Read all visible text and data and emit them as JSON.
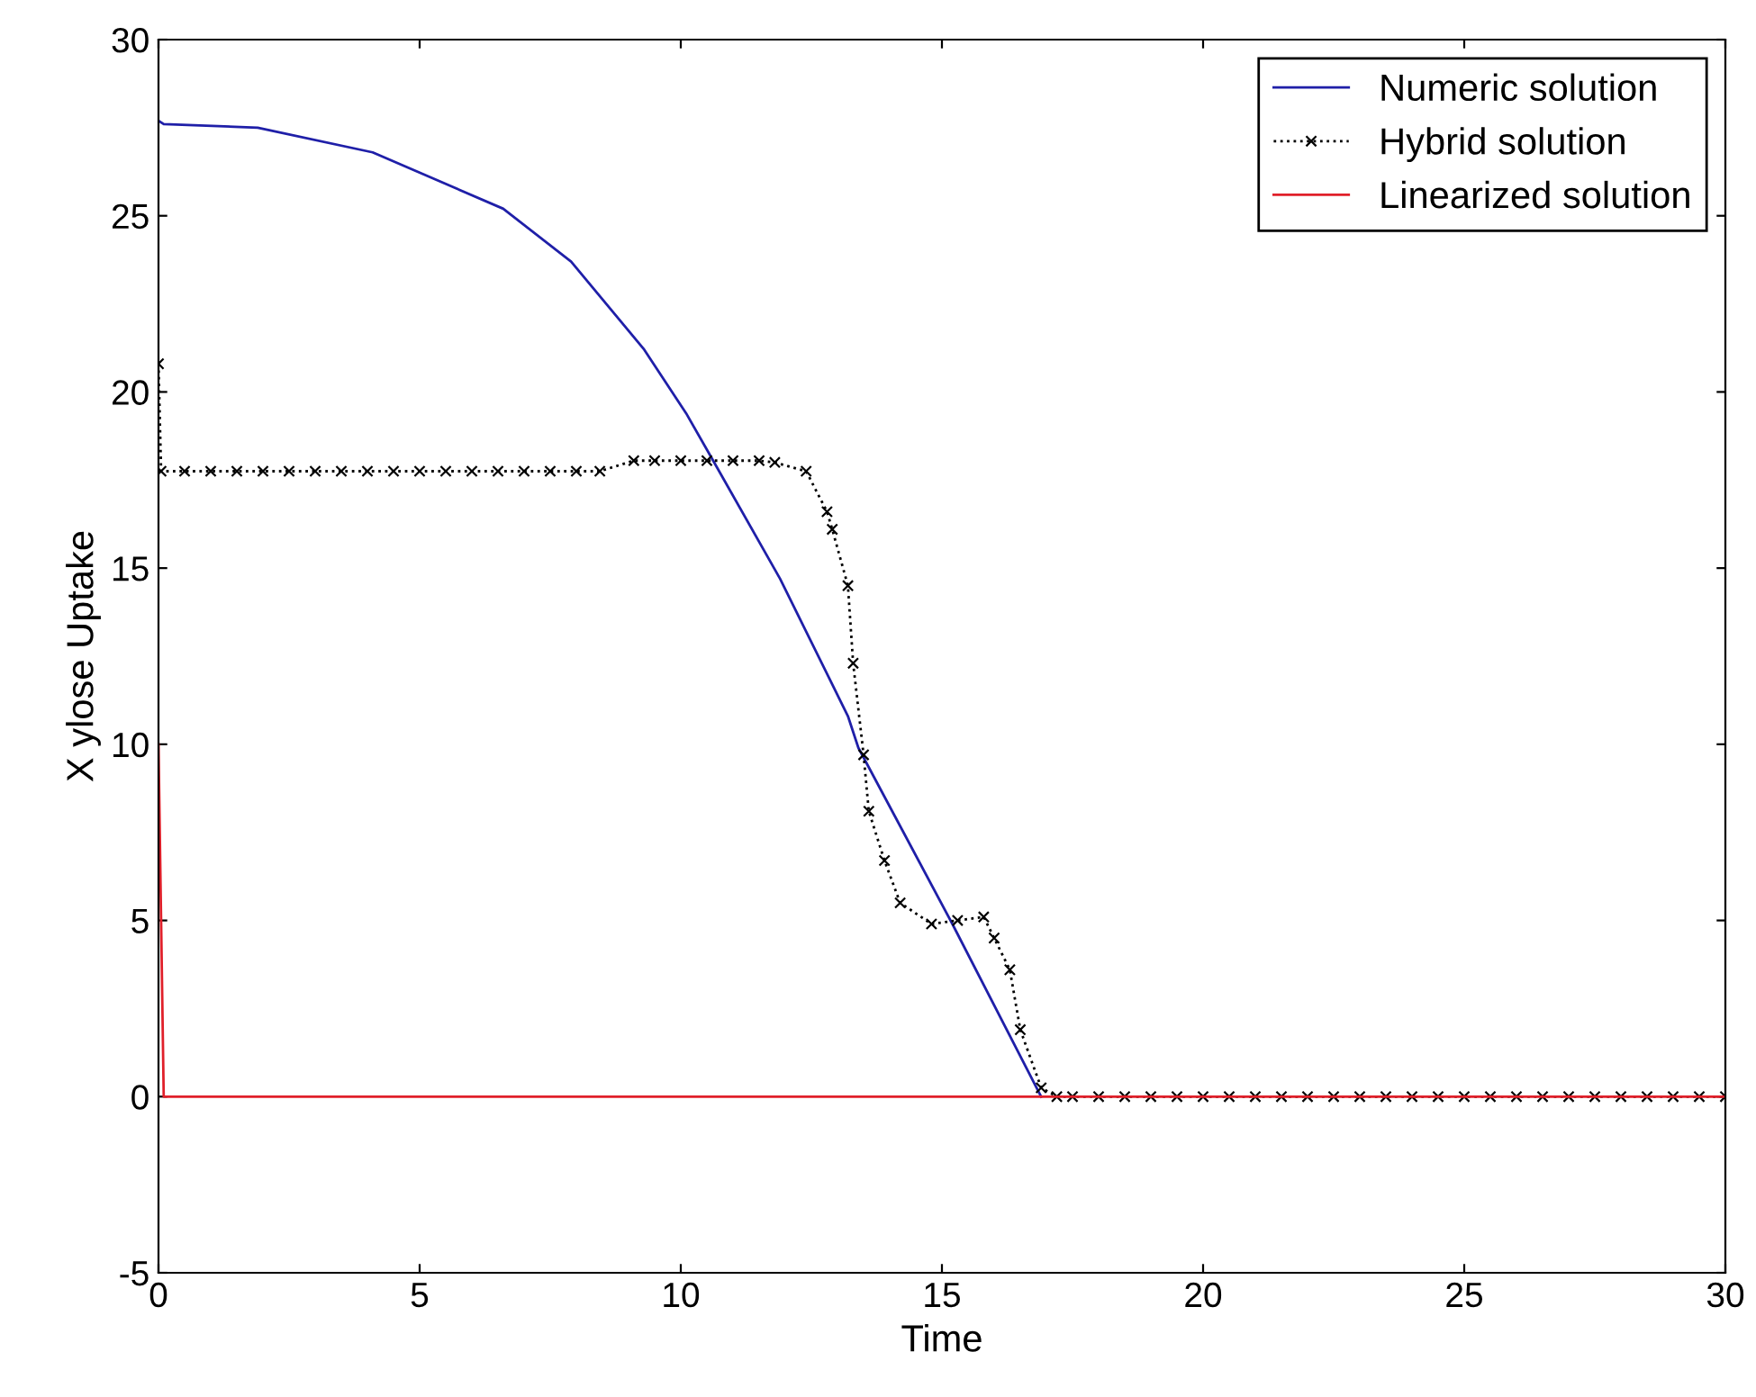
{
  "chart_data": {
    "type": "line",
    "xlabel": "Time",
    "ylabel": "X ylose Uptake",
    "xlim": [
      0,
      30
    ],
    "ylim": [
      -5,
      30
    ],
    "xticks": [
      0,
      5,
      10,
      15,
      20,
      25,
      30
    ],
    "yticks": [
      -5,
      0,
      5,
      10,
      15,
      20,
      25,
      30
    ],
    "grid": false,
    "legend": "top right",
    "series": [
      {
        "name": "Numeric solution",
        "color": "#1f1fa8",
        "line_style": "solid",
        "marker": "none",
        "x": [
          0,
          0.1,
          1.9,
          4.1,
          6.6,
          7.9,
          9.3,
          10.1,
          10.6,
          11.9,
          13.2,
          13.4,
          15.2,
          16.9
        ],
        "values": [
          27.7,
          27.6,
          27.5,
          26.8,
          25.2,
          23.7,
          21.2,
          19.4,
          18.1,
          14.7,
          10.8,
          9.9,
          4.9,
          0
        ]
      },
      {
        "name": "Hybrid solution",
        "color": "#000000",
        "line_style": "dotted",
        "marker": "cross",
        "x": [
          0,
          0.05,
          0.5,
          1,
          1.5,
          2,
          2.5,
          3,
          3.5,
          4,
          4.5,
          5,
          5.5,
          6,
          6.5,
          7,
          7.5,
          8,
          8.45,
          9.1,
          9.5,
          10,
          10.5,
          11,
          11.5,
          11.8,
          12.4,
          12.8,
          12.9,
          13.2,
          13.3,
          13.5,
          13.6,
          13.9,
          14.2,
          14.8,
          15.3,
          15.8,
          16.0,
          16.3,
          16.5,
          16.9,
          17.2,
          17.5,
          18,
          18.5,
          19,
          19.5,
          20,
          20.5,
          21,
          21.5,
          22,
          22.5,
          23,
          23.5,
          24,
          24.5,
          25,
          25.5,
          26,
          26.5,
          27,
          27.5,
          28,
          28.5,
          29,
          29.5,
          30
        ],
        "values": [
          20.8,
          17.75,
          17.75,
          17.75,
          17.75,
          17.75,
          17.75,
          17.75,
          17.75,
          17.75,
          17.75,
          17.75,
          17.75,
          17.75,
          17.75,
          17.75,
          17.75,
          17.75,
          17.75,
          18.05,
          18.05,
          18.05,
          18.05,
          18.05,
          18.05,
          18.0,
          17.75,
          16.6,
          16.1,
          14.5,
          12.3,
          9.7,
          8.1,
          6.7,
          5.5,
          4.9,
          5.0,
          5.1,
          4.5,
          3.6,
          1.9,
          0.25,
          0,
          0,
          0,
          0,
          0,
          0,
          0,
          0,
          0,
          0,
          0,
          0,
          0,
          0,
          0,
          0,
          0,
          0,
          0,
          0,
          0,
          0,
          0,
          0,
          0,
          0,
          0
        ]
      },
      {
        "name": "Linearized solution",
        "color": "#e0202a",
        "line_style": "solid",
        "marker": "none",
        "x": [
          0,
          0.1,
          30
        ],
        "values": [
          10,
          0,
          0
        ]
      }
    ]
  }
}
